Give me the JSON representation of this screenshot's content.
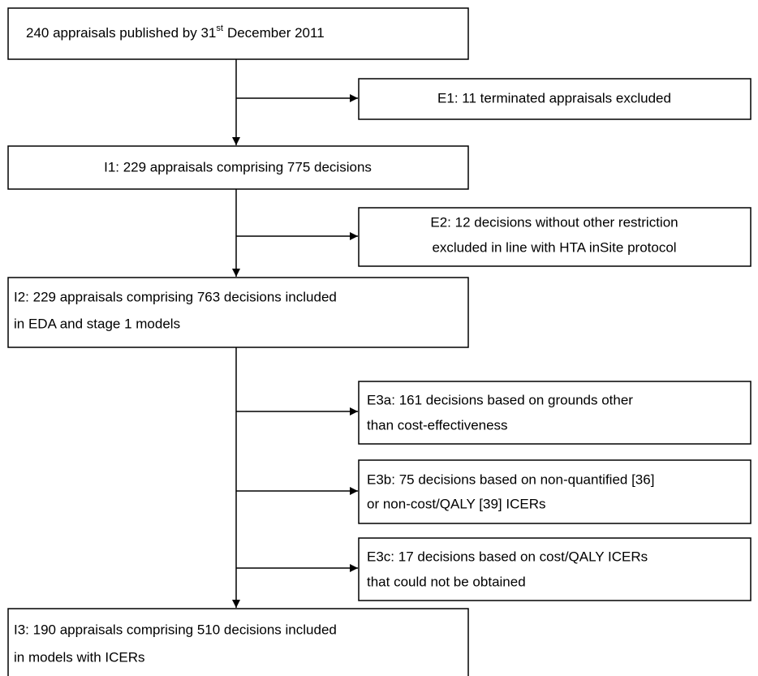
{
  "nodes": [
    {
      "id": "start",
      "text": "240 appraisals published by 31",
      "superscript": "st",
      "text_after": "December 2011"
    },
    {
      "id": "E1",
      "lines": [
        "E1: 11 terminated appraisals excluded"
      ]
    },
    {
      "id": "I1",
      "lines": [
        "I1: 229 appraisals comprising 775 decisions"
      ]
    },
    {
      "id": "E2",
      "lines": [
        "E2: 12 decisions without other restriction",
        "excluded in line with HTA inSite protocol"
      ]
    },
    {
      "id": "I2",
      "lines": [
        "I2: 229 appraisals comprising 763 decisions included",
        "in EDA and stage 1 models"
      ]
    },
    {
      "id": "E3a",
      "lines": [
        "E3a: 161 decisions based on grounds other",
        "than cost-effectiveness"
      ]
    },
    {
      "id": "E3b",
      "lines": [
        "E3b: 75 decisions based on non-quantified [36]",
        "or non-cost/QALY [39] ICERs"
      ]
    },
    {
      "id": "E3c",
      "lines": [
        "E3c: 17 decisions based on cost/QALY ICERs",
        "that could not be obtained"
      ]
    },
    {
      "id": "I3",
      "lines": [
        "I3: 190 appraisals comprising 510 decisions included",
        "in models with ICERs"
      ]
    }
  ]
}
